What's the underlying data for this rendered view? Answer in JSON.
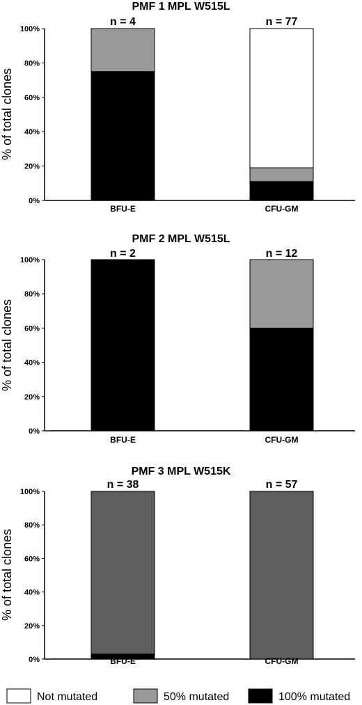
{
  "chart_data": [
    {
      "type": "bar",
      "stacked": true,
      "title": "PMF 1 MPL W515L",
      "ylabel": "% of total clones",
      "ylim": [
        0,
        100
      ],
      "yticks": [
        "0%",
        "20%",
        "40%",
        "60%",
        "80%",
        "100%"
      ],
      "categories": [
        "BFU-E",
        "CFU-GM"
      ],
      "n_labels": [
        "n = 4",
        "n = 77"
      ],
      "series": [
        {
          "name": "100% mutated",
          "values": [
            75,
            11
          ]
        },
        {
          "name": "50% mutated",
          "values": [
            25,
            8
          ]
        },
        {
          "name": "Not mutated",
          "values": [
            0,
            81
          ]
        }
      ]
    },
    {
      "type": "bar",
      "stacked": true,
      "title": "PMF 2 MPL W515L",
      "ylabel": "% of total clones",
      "ylim": [
        0,
        100
      ],
      "yticks": [
        "0%",
        "20%",
        "40%",
        "60%",
        "80%",
        "100%"
      ],
      "categories": [
        "BFU-E",
        "CFU-GM"
      ],
      "n_labels": [
        "n = 2",
        "n = 12"
      ],
      "series": [
        {
          "name": "100% mutated",
          "values": [
            100,
            60
          ]
        },
        {
          "name": "50% mutated",
          "values": [
            0,
            40
          ]
        },
        {
          "name": "Not mutated",
          "values": [
            0,
            0
          ]
        }
      ]
    },
    {
      "type": "bar",
      "stacked": true,
      "title": "PMF 3 MPL W515K",
      "ylabel": "% of total clones",
      "ylim": [
        0,
        100
      ],
      "yticks": [
        "0%",
        "20%",
        "40%",
        "60%",
        "80%",
        "100%"
      ],
      "categories": [
        "BFU-E",
        "CFU-GM"
      ],
      "n_labels": [
        "n = 38",
        "n = 57"
      ],
      "series": [
        {
          "name": "100% mutated",
          "values": [
            3,
            0
          ]
        },
        {
          "name": "50% mutated",
          "values": [
            97,
            100
          ]
        },
        {
          "name": "Not mutated",
          "values": [
            0,
            0
          ]
        }
      ]
    }
  ],
  "legend": {
    "items": [
      {
        "label": "Not mutated",
        "color": "#ffffff"
      },
      {
        "label": "50% mutated",
        "color": "#999999"
      },
      {
        "label": "100% mutated",
        "color": "#000000"
      }
    ]
  },
  "colors": {
    "100% mutated": "#000000",
    "50% mutated": "#999999",
    "Not mutated": "#ffffff",
    "panel3_50": "#5e5e5e"
  }
}
